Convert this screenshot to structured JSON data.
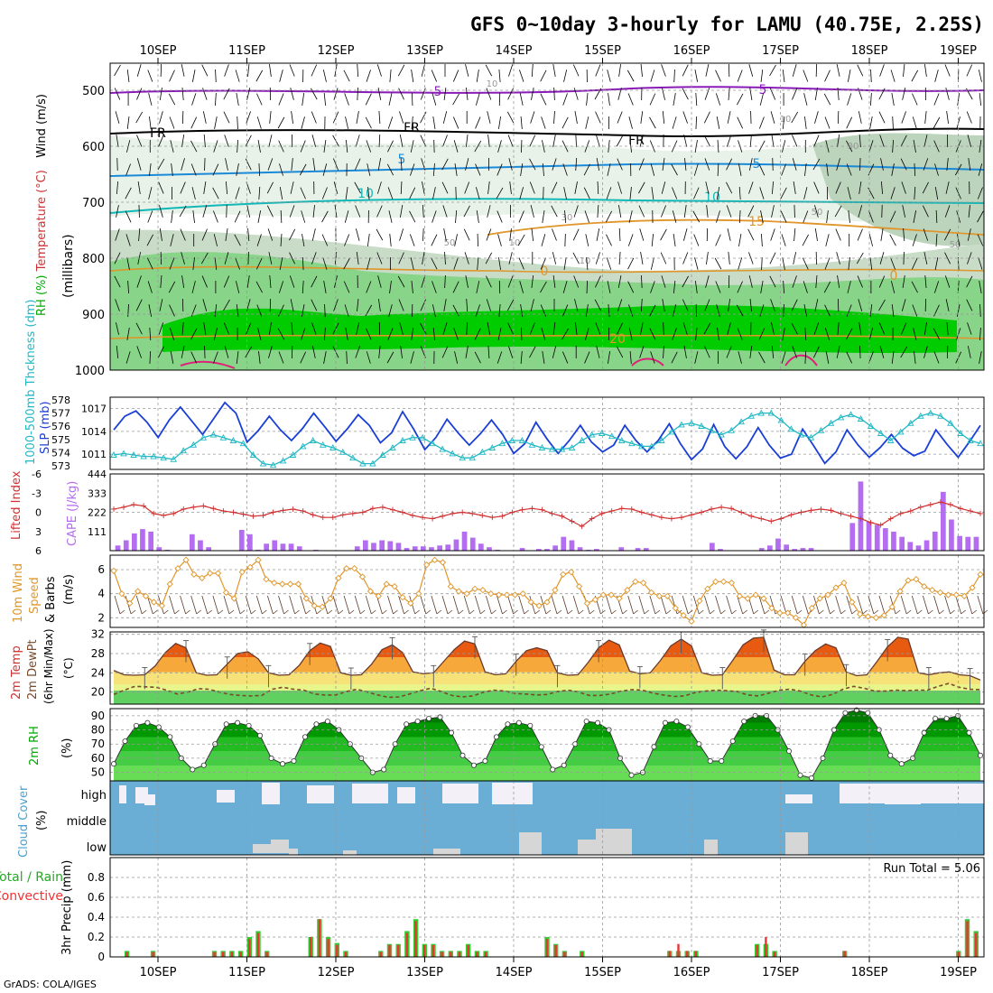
{
  "title": "GFS 0~10day 3-hourly for LAMU (40.75E, 2.25S)",
  "footer": "GrADS: COLA/IGES",
  "dates": [
    "10SEP",
    "11SEP",
    "12SEP",
    "13SEP",
    "14SEP",
    "15SEP",
    "16SEP",
    "17SEP",
    "18SEP",
    "19SEP"
  ],
  "colors": {
    "slp": "#1a3fd6",
    "thickness": "#22b8c4",
    "lifted": "#d03030",
    "cape": "#b46cf0",
    "wind": "#e0962a",
    "barb": "#000000",
    "dewpt": "#7a4a2a",
    "cloud": "#6aaed6",
    "cloud_gap": "#f4f0f8",
    "cloud_low": "#d6d6d6",
    "rh_dark": "#00cc00",
    "rain_total": "#33cc33",
    "rain_conv": "#ee3333"
  },
  "panels": {
    "upper": {
      "ylabel_parts": [
        "RH (%)",
        "Temperature (°C)",
        "Wind (m/s)"
      ],
      "yunit": "(millibars)",
      "ticks": [
        "500",
        "600",
        "700",
        "800",
        "900",
        "1000"
      ],
      "iso_labels": [
        {
          "text": "5",
          "color": "#8a1ab8"
        },
        {
          "text": "5",
          "color": "#8a1ab8"
        },
        {
          "text": "FR",
          "color": "#000000"
        },
        {
          "text": "FR",
          "color": "#000000"
        },
        {
          "text": "FR",
          "color": "#000000"
        },
        {
          "text": "5",
          "color": "#1a8ad8"
        },
        {
          "text": "5",
          "color": "#1a8ad8"
        },
        {
          "text": "10",
          "color": "#11b8b8"
        },
        {
          "text": "10",
          "color": "#11b8b8"
        },
        {
          "text": "15",
          "color": "#e0962a"
        },
        {
          "text": "0",
          "color": "#e0962a"
        },
        {
          "text": "0",
          "color": "#e0962a"
        },
        {
          "text": "20",
          "color": "#e0962a"
        },
        {
          "text": "10",
          "color": "#999999"
        },
        {
          "text": "10",
          "color": "#999999"
        },
        {
          "text": "10",
          "color": "#999999"
        },
        {
          "text": "30",
          "color": "#999999"
        },
        {
          "text": "30",
          "color": "#999999"
        },
        {
          "text": "50",
          "color": "#999999"
        },
        {
          "text": "50",
          "color": "#999999"
        },
        {
          "text": "50",
          "color": "#999999"
        },
        {
          "text": "10",
          "color": "#999999"
        }
      ]
    },
    "slp": {
      "ylabel_left": "1000-500mb Thckness (dm)",
      "ylabel_right": "SLP (mb)",
      "left_ticks": [
        "578",
        "577",
        "576",
        "575",
        "574",
        "573"
      ],
      "right_ticks": [
        "1017",
        "1014",
        "1011"
      ]
    },
    "cape": {
      "ylabel_left": "Lifted Index",
      "ylabel_right": "CAPE (J/kg)",
      "left_ticks": [
        "-6",
        "-3",
        "0",
        "3",
        "6"
      ],
      "right_ticks": [
        "444",
        "333",
        "222",
        "111"
      ]
    },
    "wind": {
      "ylabel": "10m Wind Speed & Barbs (m/s)",
      "ticks": [
        "6",
        "4",
        "2"
      ]
    },
    "temp": {
      "ylabel": "2m Temp 2m DewPt (6hr Min/Max) (°C)",
      "ticks": [
        "32",
        "28",
        "24",
        "20"
      ]
    },
    "rh": {
      "ylabel": "2m RH (%)",
      "ticks": [
        "90",
        "80",
        "70",
        "60",
        "50"
      ]
    },
    "cloud": {
      "ylabel": "Cloud Cover (%)",
      "levels": [
        "high",
        "middle",
        "low"
      ]
    },
    "precip": {
      "ylabel": "Total / Rain Convective",
      "yunit": "3hr Precip (mm)",
      "ticks": [
        "0.8",
        "0.6",
        "0.4",
        "0.2",
        "0"
      ],
      "run_total": "Run Total = 5.06"
    }
  },
  "chart_data": [
    {
      "type": "line",
      "name": "SLP",
      "units": "mb",
      "ylim": [
        1009,
        1018.5
      ],
      "values": [
        1014.2,
        1016.0,
        1016.7,
        1015.2,
        1013.2,
        1015.5,
        1017.2,
        1015.4,
        1013.6,
        1015.7,
        1017.8,
        1016.4,
        1012.6,
        1014.1,
        1016.0,
        1014.2,
        1012.8,
        1014.4,
        1016.4,
        1014.6,
        1012.7,
        1014.3,
        1016.2,
        1014.8,
        1012.5,
        1013.8,
        1016.6,
        1014.3,
        1011.6,
        1013.2,
        1015.6,
        1013.8,
        1012.2,
        1013.7,
        1015.5,
        1013.6,
        1011.1,
        1012.4,
        1015.2,
        1013.0,
        1011.1,
        1012.8,
        1014.8,
        1012.6,
        1011.3,
        1012.2,
        1014.8,
        1012.8,
        1011.3,
        1012.8,
        1015.0,
        1012.4,
        1010.3,
        1011.7,
        1014.9,
        1012.0,
        1010.4,
        1012.0,
        1014.5,
        1012.2,
        1010.5,
        1011.0,
        1014.3,
        1012.1,
        1009.8,
        1011.3,
        1014.2,
        1012.2,
        1010.6,
        1011.9,
        1013.6,
        1011.8,
        1010.8,
        1011.4,
        1014.2,
        1012.3,
        1010.6,
        1012.6,
        1014.8
      ]
    },
    {
      "type": "line",
      "name": "Thickness",
      "units": "dm",
      "ylim": [
        573,
        578
      ],
      "values": [
        574.0,
        574.1,
        574.0,
        573.9,
        573.9,
        573.8,
        573.7,
        574.3,
        574.7,
        575.2,
        575.4,
        575.2,
        575.0,
        574.8,
        574.0,
        573.4,
        573.3,
        573.6,
        574.0,
        574.6,
        575.0,
        574.7,
        574.5,
        574.2,
        573.8,
        573.4,
        573.4,
        574.0,
        574.5,
        575.0,
        575.2,
        575.2,
        574.8,
        574.4,
        574.1,
        573.8,
        573.8,
        574.2,
        574.5,
        574.8,
        575.0,
        575.0,
        574.7,
        574.5,
        574.4,
        574.4,
        574.5,
        575.0,
        575.4,
        575.5,
        575.3,
        575.0,
        574.8,
        574.6,
        574.6,
        575.0,
        575.6,
        576.1,
        576.2,
        576.0,
        575.7,
        575.4,
        575.7,
        576.3,
        576.7,
        576.9,
        576.9,
        576.4,
        575.8,
        575.4,
        575.2,
        575.7,
        576.2,
        576.6,
        576.8,
        576.5,
        576.0,
        575.5,
        575.0,
        575.6,
        576.2,
        576.7,
        576.9,
        576.7,
        576.2,
        575.5,
        575.0,
        574.8
      ]
    },
    {
      "type": "line",
      "name": "Lifted Index",
      "ylim": [
        6,
        -6
      ],
      "values": [
        -0.5,
        -0.8,
        -1.2,
        -1.0,
        0.2,
        0.5,
        0.2,
        -0.5,
        -0.8,
        -1.0,
        -0.6,
        -0.2,
        0.0,
        0.3,
        0.6,
        0.5,
        0.0,
        -0.3,
        -0.5,
        -0.2,
        0.4,
        0.8,
        0.8,
        0.4,
        0.2,
        0.0,
        -0.6,
        -0.8,
        -0.4,
        0.0,
        0.5,
        0.8,
        1.0,
        0.6,
        0.2,
        0.0,
        0.2,
        0.5,
        0.8,
        0.6,
        0.0,
        -0.4,
        -0.6,
        -0.4,
        0.2,
        0.6,
        1.4,
        2.2,
        1.0,
        0.2,
        -0.2,
        -0.6,
        -0.5,
        0.0,
        0.4,
        0.8,
        1.0,
        0.8,
        0.4,
        0.0,
        -0.5,
        -0.8,
        -0.6,
        0.0,
        0.6,
        1.0,
        1.4,
        1.0,
        0.4,
        0.0,
        -0.3,
        -0.5,
        -0.3,
        0.2,
        0.6,
        1.0,
        1.6,
        2.0,
        1.0,
        0.2,
        -0.2,
        -0.8,
        -1.2,
        -1.6,
        -1.2,
        -0.6,
        -0.2,
        0.2
      ]
    },
    {
      "type": "bar",
      "name": "CAPE",
      "units": "J/kg",
      "ylim": [
        0,
        444
      ],
      "values": [
        30,
        60,
        100,
        125,
        110,
        20,
        5,
        0,
        0,
        95,
        60,
        20,
        0,
        0,
        0,
        120,
        95,
        5,
        40,
        60,
        40,
        40,
        25,
        0,
        5,
        0,
        0,
        0,
        0,
        25,
        60,
        45,
        60,
        55,
        45,
        15,
        25,
        25,
        20,
        30,
        35,
        65,
        110,
        75,
        40,
        20,
        5,
        0,
        0,
        15,
        0,
        10,
        10,
        30,
        80,
        60,
        20,
        5,
        10,
        0,
        0,
        20,
        0,
        15,
        15,
        0,
        0,
        0,
        0,
        0,
        0,
        0,
        45,
        10,
        0,
        0,
        0,
        0,
        15,
        30,
        70,
        35,
        10,
        15,
        15,
        0,
        0,
        0,
        0,
        160,
        400,
        170,
        150,
        130,
        110,
        80,
        50,
        30,
        60,
        110,
        340,
        180,
        85,
        80,
        80
      ]
    },
    {
      "type": "line",
      "name": "10m Wind Speed",
      "units": "m/s",
      "ylim": [
        1.2,
        7.2
      ],
      "values": [
        5.9,
        4.0,
        3.2,
        4.2,
        3.8,
        3.3,
        3.0,
        4.8,
        6.1,
        6.8,
        5.6,
        5.3,
        5.7,
        5.7,
        4.1,
        3.6,
        5.8,
        6.2,
        6.8,
        5.2,
        4.9,
        4.8,
        4.8,
        4.8,
        3.6,
        3.0,
        2.9,
        3.6,
        5.3,
        6.1,
        6.1,
        5.4,
        4.2,
        3.8,
        4.8,
        4.6,
        3.7,
        3.2,
        4.0,
        6.4,
        6.8,
        6.6,
        4.6,
        4.2,
        4.0,
        4.4,
        4.3,
        4.0,
        3.9,
        3.9,
        3.9,
        4.0,
        3.3,
        3.0,
        3.3,
        4.3,
        5.6,
        5.8,
        4.6,
        3.2,
        3.5,
        3.9,
        3.9,
        3.6,
        4.3,
        5.0,
        4.9,
        4.1,
        3.8,
        3.8,
        2.8,
        2.2,
        1.7,
        3.4,
        4.4,
        5.0,
        5.0,
        4.9,
        3.8,
        3.6,
        3.9,
        3.6,
        2.8,
        2.4,
        2.4,
        2.0,
        1.4,
        2.8,
        3.6,
        3.9,
        4.5,
        4.9,
        3.3,
        2.3,
        2.1,
        2.0,
        2.2,
        2.9,
        4.2,
        5.1,
        5.2,
        4.6,
        4.3,
        4.1,
        3.9,
        3.9,
        3.8,
        4.5,
        5.6
      ]
    },
    {
      "type": "area",
      "name": "2m Temp",
      "units": "°C",
      "ylim": [
        17.5,
        32.5
      ],
      "values": [
        24.5,
        23.6,
        23.5,
        23.6,
        25.4,
        28.2,
        30.1,
        29.2,
        24.0,
        23.5,
        23.6,
        25.8,
        28.0,
        28.4,
        26.9,
        24.0,
        23.5,
        23.6,
        25.6,
        28.6,
        30.2,
        29.5,
        24.0,
        23.5,
        23.6,
        25.8,
        28.8,
        29.8,
        28.2,
        24.2,
        23.8,
        24.0,
        26.4,
        28.8,
        30.6,
        30.0,
        24.2,
        23.6,
        23.8,
        26.4,
        28.6,
        29.2,
        28.6,
        24.0,
        23.5,
        23.6,
        26.2,
        29.2,
        30.8,
        29.8,
        24.4,
        23.8,
        24.0,
        26.6,
        29.6,
        31.0,
        29.6,
        24.0,
        23.5,
        23.6,
        26.6,
        29.8,
        31.2,
        31.4,
        24.6,
        23.6,
        23.6,
        26.4,
        28.6,
        30.0,
        29.2,
        24.2,
        23.4,
        23.6,
        26.4,
        29.4,
        31.4,
        31.0,
        24.0,
        23.6,
        24.0,
        24.2,
        23.6,
        23.4,
        22.5
      ]
    },
    {
      "type": "line",
      "name": "2m DewPt",
      "units": "°C",
      "ylim": [
        17.5,
        32.5
      ],
      "values": [
        19.5,
        20.4,
        21.2,
        21.1,
        21.0,
        20.4,
        19.6,
        20.0,
        20.7,
        20.6,
        20.0,
        19.5,
        19.3,
        19.2,
        19.3,
        20.6,
        21.0,
        20.6,
        20.4,
        19.6,
        19.4,
        19.4,
        20.1,
        20.6,
        20.0,
        19.4,
        18.9,
        19.0,
        19.6,
        20.3,
        20.8,
        20.1,
        19.3,
        19.0,
        19.2,
        20.0,
        20.4,
        20.2,
        19.7,
        19.6,
        19.4,
        19.5,
        20.1,
        20.4,
        20.0,
        19.3,
        19.3,
        19.6,
        20.2,
        20.5,
        20.4,
        19.8,
        19.4,
        19.1,
        19.2,
        19.9,
        20.2,
        20.4,
        20.3,
        20.1,
        19.4,
        19.2,
        19.8,
        20.4,
        20.6,
        20.2,
        19.4,
        19.0,
        19.5,
        20.6,
        21.2,
        20.8,
        20.2,
        20.2,
        20.4,
        20.3,
        20.4,
        20.4,
        21.2,
        21.8,
        21.0,
        20.6,
        20.5
      ]
    },
    {
      "type": "area",
      "name": "2m RH",
      "units": "%",
      "ylim": [
        44,
        95
      ],
      "values": [
        56,
        72,
        83,
        85,
        82,
        75,
        60,
        52,
        55,
        70,
        84,
        85,
        83,
        76,
        60,
        56,
        58,
        75,
        84,
        86,
        80,
        70,
        60,
        50,
        52,
        70,
        84,
        86,
        88,
        89,
        78,
        62,
        55,
        58,
        75,
        84,
        85,
        83,
        68,
        52,
        55,
        70,
        86,
        85,
        80,
        60,
        48,
        50,
        68,
        85,
        86,
        82,
        70,
        58,
        58,
        72,
        86,
        90,
        90,
        80,
        65,
        48,
        46,
        60,
        80,
        92,
        94,
        92,
        80,
        62,
        56,
        60,
        78,
        88,
        88,
        90,
        78,
        62
      ]
    },
    {
      "type": "bar",
      "name": "3hr Precip Total",
      "units": "mm",
      "ylim": [
        0,
        1.0
      ],
      "values": [
        0,
        0.06,
        0,
        0,
        0.06,
        0,
        0,
        0,
        0,
        0,
        0,
        0.06,
        0.06,
        0.06,
        0.06,
        0.2,
        0.26,
        0.06,
        0,
        0,
        0,
        0,
        0.2,
        0.38,
        0.2,
        0.14,
        0.06,
        0,
        0,
        0,
        0.06,
        0.13,
        0.13,
        0.26,
        0.38,
        0.13,
        0.13,
        0.06,
        0.06,
        0.06,
        0.13,
        0.06,
        0.06,
        0,
        0,
        0,
        0,
        0,
        0,
        0.2,
        0.13,
        0.06,
        0,
        0.06,
        0,
        0,
        0,
        0,
        0,
        0,
        0,
        0,
        0,
        0.06,
        0.06,
        0.06,
        0.06,
        0,
        0,
        0,
        0,
        0,
        0,
        0.13,
        0.13,
        0.06,
        0,
        0,
        0,
        0,
        0,
        0,
        0,
        0.06,
        0,
        0,
        0,
        0,
        0,
        0,
        0,
        0,
        0,
        0,
        0,
        0,
        0.06,
        0.38,
        0.26
      ]
    },
    {
      "type": "bar",
      "name": "3hr Precip Convective",
      "units": "mm",
      "ylim": [
        0,
        1.0
      ],
      "values": [
        0,
        0.05,
        0,
        0,
        0.05,
        0,
        0,
        0,
        0,
        0,
        0,
        0.05,
        0.05,
        0.05,
        0.05,
        0.18,
        0.24,
        0.05,
        0,
        0,
        0,
        0,
        0.2,
        0.38,
        0.18,
        0.12,
        0.05,
        0,
        0,
        0,
        0.05,
        0.12,
        0.12,
        0.24,
        0.36,
        0.12,
        0.12,
        0.05,
        0.05,
        0.05,
        0.12,
        0.05,
        0.05,
        0,
        0,
        0,
        0,
        0,
        0,
        0.18,
        0.12,
        0.05,
        0,
        0.05,
        0,
        0,
        0,
        0,
        0,
        0,
        0,
        0,
        0,
        0.06,
        0.13,
        0.06,
        0.06,
        0,
        0,
        0,
        0,
        0,
        0,
        0.12,
        0.2,
        0.05,
        0,
        0,
        0,
        0,
        0,
        0,
        0,
        0.06,
        0.06,
        0,
        0,
        0,
        0,
        0,
        0,
        0,
        0,
        0,
        0,
        0,
        0.05,
        0.36,
        0.24
      ]
    }
  ]
}
